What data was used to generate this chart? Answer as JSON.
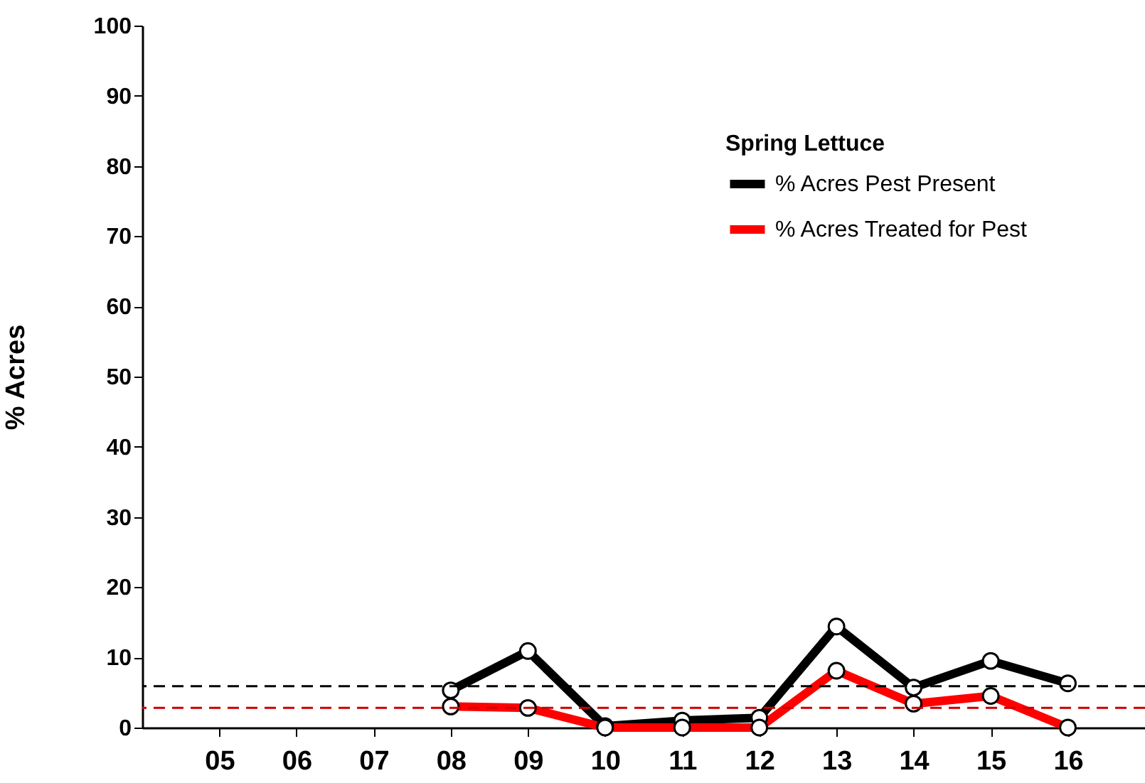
{
  "chart_data": {
    "type": "line",
    "ylabel": "% Acres",
    "legend_title": "Spring Lettuce",
    "legend": "top right",
    "marker": "circle",
    "line_style": "solid",
    "grid": false,
    "categories": [
      "05",
      "06",
      "07",
      "08",
      "09",
      "10",
      "11",
      "12",
      "13",
      "14",
      "15",
      "16"
    ],
    "ylim": [
      0,
      100
    ],
    "yticks": [
      0,
      10,
      20,
      30,
      40,
      50,
      60,
      70,
      80,
      90,
      100
    ],
    "series": [
      {
        "name": "% Acres Pest Present",
        "color": "#000000",
        "values": [
          null,
          null,
          null,
          5.3,
          10.9,
          0.2,
          1.0,
          1.4,
          14.4,
          5.7,
          9.5,
          6.3
        ]
      },
      {
        "name": "% Acres Treated for Pest",
        "color": "#ff0000",
        "values": [
          null,
          null,
          null,
          3.0,
          2.8,
          0,
          0,
          0,
          8.1,
          3.4,
          4.5,
          0
        ]
      }
    ],
    "ref_lines": [
      {
        "axis": "y",
        "value": 5.9,
        "color": "#000000",
        "line_style": "dashed"
      },
      {
        "axis": "y",
        "value": 2.8,
        "color": "#cc0000",
        "line_style": "dashed"
      }
    ]
  }
}
